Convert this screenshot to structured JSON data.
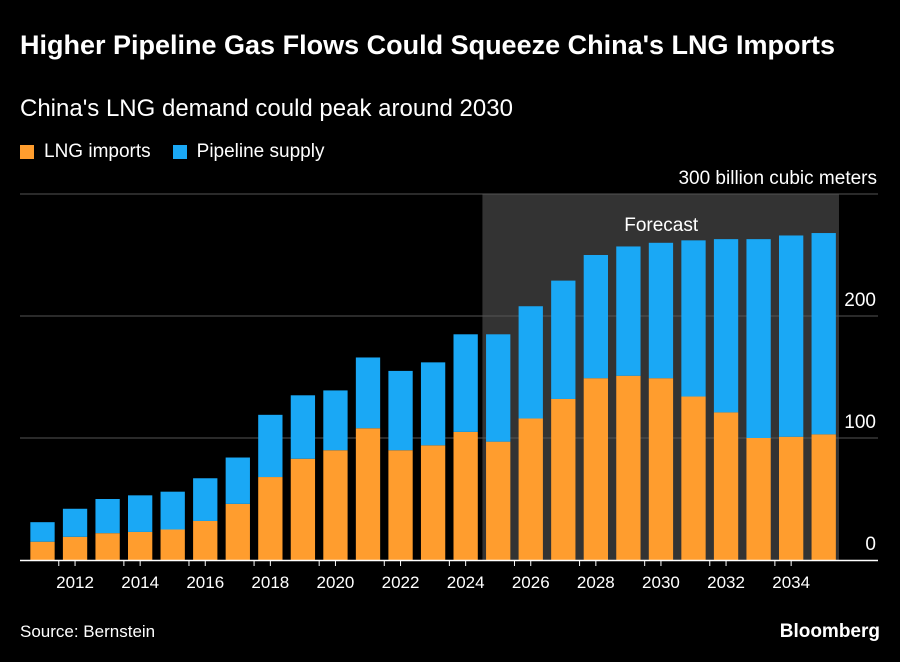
{
  "header": {
    "title": "Higher Pipeline Gas Flows Could Squeeze China's LNG Imports",
    "subtitle": "China's LNG demand could peak around 2030"
  },
  "footer": {
    "source": "Source: Bernstein",
    "brand": "Bloomberg"
  },
  "colors": {
    "lng": "#ff9d2e",
    "pipeline": "#1aa8f5",
    "forecast_band": "#333333",
    "grid": "#555555"
  },
  "chart_data": {
    "type": "bar",
    "stacked": true,
    "title": "Higher Pipeline Gas Flows Could Squeeze China's LNG Imports",
    "subtitle": "China's LNG demand could peak around 2030",
    "unit_label": "300 billion cubic meters",
    "x": [
      2011,
      2012,
      2013,
      2014,
      2015,
      2016,
      2017,
      2018,
      2019,
      2020,
      2021,
      2022,
      2023,
      2024,
      2025,
      2026,
      2027,
      2028,
      2029,
      2030,
      2031,
      2032,
      2033,
      2034,
      2035
    ],
    "x_tick_labels": [
      "2012",
      "2014",
      "2016",
      "2018",
      "2020",
      "2022",
      "2024",
      "2026",
      "2028",
      "2030",
      "2032",
      "2034"
    ],
    "ylim": [
      0,
      300
    ],
    "y_ticks": [
      0,
      100,
      200,
      300
    ],
    "y_tick_labels": [
      "0",
      "100",
      "200"
    ],
    "grid": true,
    "legend_position": "top-left",
    "series": [
      {
        "name": "LNG imports",
        "values": [
          15,
          19,
          22,
          23,
          25,
          32,
          46,
          68,
          83,
          90,
          108,
          90,
          94,
          105,
          97,
          116,
          132,
          149,
          151,
          149,
          134,
          121,
          100,
          101,
          103
        ]
      },
      {
        "name": "Pipeline supply",
        "values": [
          16,
          23,
          28,
          30,
          31,
          35,
          38,
          51,
          52,
          49,
          58,
          65,
          68,
          80,
          88,
          92,
          97,
          101,
          106,
          111,
          128,
          142,
          163,
          165,
          165
        ]
      }
    ],
    "annotations": [
      {
        "label": "Forecast",
        "x_start": 2025,
        "x_end": 2035
      }
    ]
  }
}
